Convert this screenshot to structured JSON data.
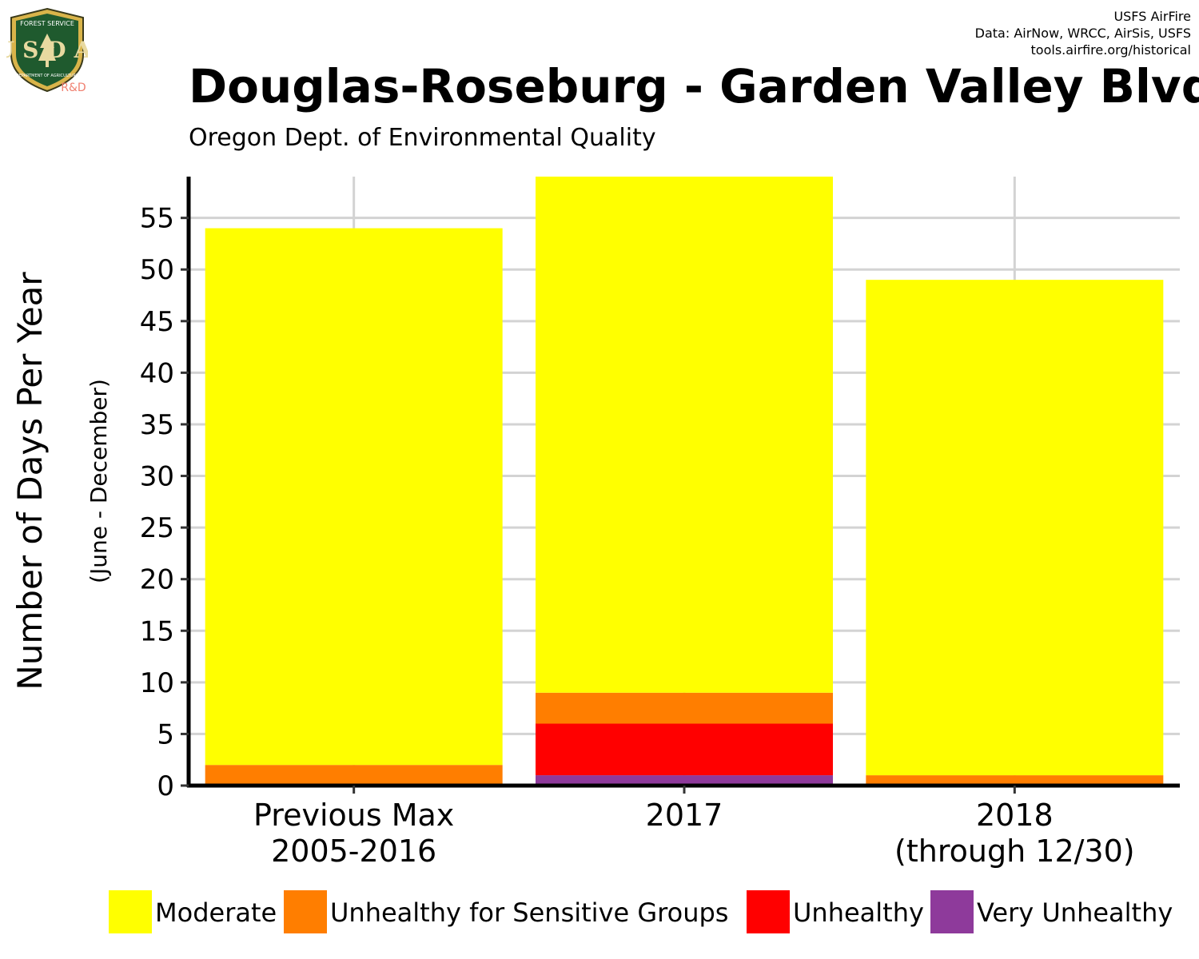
{
  "logo": {
    "top_text": "FOREST SERVICE",
    "monogram": "USDA",
    "bottom_text": "DEPARTMENT OF AGRICULTURE",
    "badge": "R&D"
  },
  "credits": [
    "USFS AirFire",
    "Data: AirNow, WRCC, AirSis, USFS",
    "tools.airfire.org/historical"
  ],
  "chart_data": {
    "type": "bar",
    "stacked": true,
    "title": "Douglas-Roseburg - Garden Valley Blvd",
    "subtitle": "Oregon Dept. of Environmental Quality",
    "ylabel": "Number of Days Per Year",
    "ylabel_sub": "(June - December)",
    "categories": [
      [
        "Previous Max",
        "2005-2016"
      ],
      [
        "2017"
      ],
      [
        "2018",
        "(through 12/30)"
      ]
    ],
    "ylim": [
      0,
      59
    ],
    "yticks": [
      0,
      5,
      10,
      15,
      20,
      25,
      30,
      35,
      40,
      45,
      50,
      55
    ],
    "grid": true,
    "legend_position": "bottom",
    "series": [
      {
        "name": "Very Unhealthy",
        "color": "#8E3A9B",
        "values": [
          0,
          1,
          0
        ]
      },
      {
        "name": "Unhealthy",
        "color": "#FF0000",
        "values": [
          0,
          5,
          0
        ]
      },
      {
        "name": "Unhealthy for Sensitive Groups",
        "color": "#FF7E00",
        "values": [
          2,
          3,
          1
        ]
      },
      {
        "name": "Moderate",
        "color": "#FFFF00",
        "values": [
          52,
          50,
          48
        ]
      }
    ],
    "legend_order": [
      "Moderate",
      "Unhealthy for Sensitive Groups",
      "Unhealthy",
      "Very Unhealthy"
    ]
  }
}
